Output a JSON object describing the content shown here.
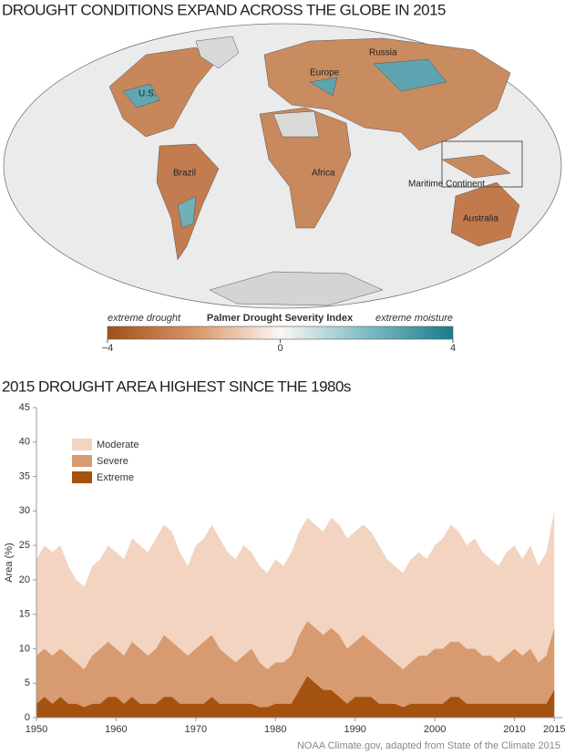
{
  "chart_data": [
    {
      "type": "map",
      "title": "DROUGHT CONDITIONS EXPAND ACROSS THE GLOBE IN 2015",
      "labels": [
        "U.S.",
        "Russia",
        "Europe",
        "Brazil",
        "Africa",
        "Maritime Continent",
        "Australia"
      ],
      "colorbar": {
        "title": "Palmer Drought Severity Index",
        "low_label": "extreme drought",
        "high_label": "extreme moisture",
        "lim": [
          -4,
          4
        ],
        "ticks": [
          {
            "value": -4,
            "label": "−4"
          },
          0,
          4
        ]
      }
    },
    {
      "type": "area",
      "title": "2015 DROUGHT AREA HIGHEST SINCE THE 1980s",
      "y_label": "Area (%)",
      "x": [
        1950,
        1951,
        1952,
        1953,
        1954,
        1955,
        1956,
        1957,
        1958,
        1959,
        1960,
        1961,
        1962,
        1963,
        1964,
        1965,
        1966,
        1967,
        1968,
        1969,
        1970,
        1971,
        1972,
        1973,
        1974,
        1975,
        1976,
        1977,
        1978,
        1979,
        1980,
        1981,
        1982,
        1983,
        1984,
        1985,
        1986,
        1987,
        1988,
        1989,
        1990,
        1991,
        1992,
        1993,
        1994,
        1995,
        1996,
        1997,
        1998,
        1999,
        2000,
        2001,
        2002,
        2003,
        2004,
        2005,
        2006,
        2007,
        2008,
        2009,
        2010,
        2011,
        2012,
        2013,
        2014,
        2015
      ],
      "series": [
        {
          "name": "Moderate",
          "color": "#f2d4c1",
          "values": [
            23,
            25,
            24,
            25,
            22,
            20,
            19,
            22,
            23,
            25,
            24,
            23,
            26,
            25,
            24,
            26,
            28,
            27,
            24,
            22,
            25,
            26,
            28,
            26,
            24,
            23,
            25,
            24,
            22,
            21,
            23,
            22,
            24,
            27,
            29,
            28,
            27,
            29,
            28,
            26,
            27,
            28,
            27,
            25,
            23,
            22,
            21,
            23,
            24,
            23,
            25,
            26,
            28,
            27,
            25,
            26,
            24,
            23,
            22,
            24,
            25,
            23,
            25,
            22,
            24,
            30
          ]
        },
        {
          "name": "Severe",
          "color": "#d89b71",
          "values": [
            9,
            10,
            9,
            10,
            9,
            8,
            7,
            9,
            10,
            11,
            10,
            9,
            11,
            10,
            9,
            10,
            12,
            11,
            10,
            9,
            10,
            11,
            12,
            10,
            9,
            8,
            9,
            10,
            8,
            7,
            8,
            8,
            9,
            12,
            14,
            13,
            12,
            13,
            12,
            10,
            11,
            12,
            11,
            10,
            9,
            8,
            7,
            8,
            9,
            9,
            10,
            10,
            11,
            11,
            10,
            10,
            9,
            9,
            8,
            9,
            10,
            9,
            10,
            8,
            9,
            13
          ]
        },
        {
          "name": "Extreme",
          "color": "#a4520f",
          "values": [
            2,
            3,
            2,
            3,
            2,
            2,
            1.5,
            2,
            2,
            3,
            3,
            2,
            3,
            2,
            2,
            2,
            3,
            3,
            2,
            2,
            2,
            2,
            3,
            2,
            2,
            2,
            2,
            2,
            1.5,
            1.5,
            2,
            2,
            2,
            4,
            6,
            5,
            4,
            4,
            3,
            2,
            3,
            3,
            3,
            2,
            2,
            2,
            1.5,
            2,
            2,
            2,
            2,
            2,
            3,
            3,
            2,
            2,
            2,
            2,
            2,
            2,
            2,
            2,
            2,
            2,
            2,
            4
          ]
        }
      ],
      "xlim": [
        1950,
        2016
      ],
      "xticks": [
        1950,
        1960,
        1970,
        1980,
        1990,
        2000,
        2010,
        2015
      ],
      "ylim": [
        0,
        45
      ],
      "yticks": [
        0,
        5,
        10,
        15,
        20,
        25,
        30,
        35,
        40,
        45
      ],
      "legend": "upper left"
    }
  ],
  "credit": "NOAA Climate.gov, adapted from State of the Climate 2015"
}
